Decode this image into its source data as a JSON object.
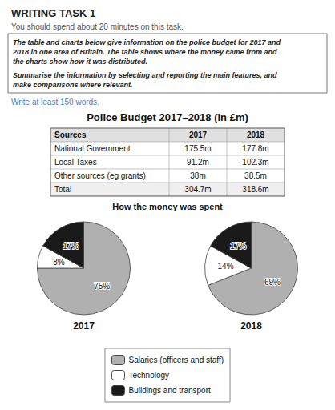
{
  "title": "WRITING TASK 1",
  "subtitle": "You should spend about 20 minutes on this task.",
  "annotations": [
    "The table and charts below give information on the police budget for 2017 and",
    "2018 in one area of Britain. The table shows where the money came from and",
    "the charts show how it was distributed.",
    "Summarise the information by selecting and reporting the main features, and",
    "make comparisons where relevant.",
    "Write at least 150 words."
  ],
  "chart_data": [
    {
      "type": "table",
      "title": "Police Budget 2017–2018 (in £m)",
      "columns": [
        "Sources",
        "2017",
        "2018"
      ],
      "rows": [
        [
          "National Government",
          "175.5m",
          "177.8m"
        ],
        [
          "Local Taxes",
          "91.2m",
          "102.3m"
        ],
        [
          "Other sources (eg grants)",
          "38m",
          "38.5m"
        ],
        [
          "Total",
          "304.7m",
          "318.6m"
        ]
      ]
    },
    {
      "type": "pie",
      "title": "How the money was spent",
      "categories": [
        "Salaries (officers and staff)",
        "Technology",
        "Buildings and transport"
      ],
      "colors": [
        "#b0b0b0",
        "#ffffff",
        "#1a1a1a"
      ],
      "series": [
        {
          "name": "2017",
          "values": [
            75,
            8,
            17
          ],
          "value_labels": [
            "75%",
            "8%",
            "17%"
          ]
        },
        {
          "name": "2018",
          "values": [
            69,
            14,
            17
          ],
          "value_labels": [
            "69%",
            "14%",
            "17%"
          ]
        }
      ],
      "data_labels": true,
      "legend": "bottom"
    }
  ]
}
